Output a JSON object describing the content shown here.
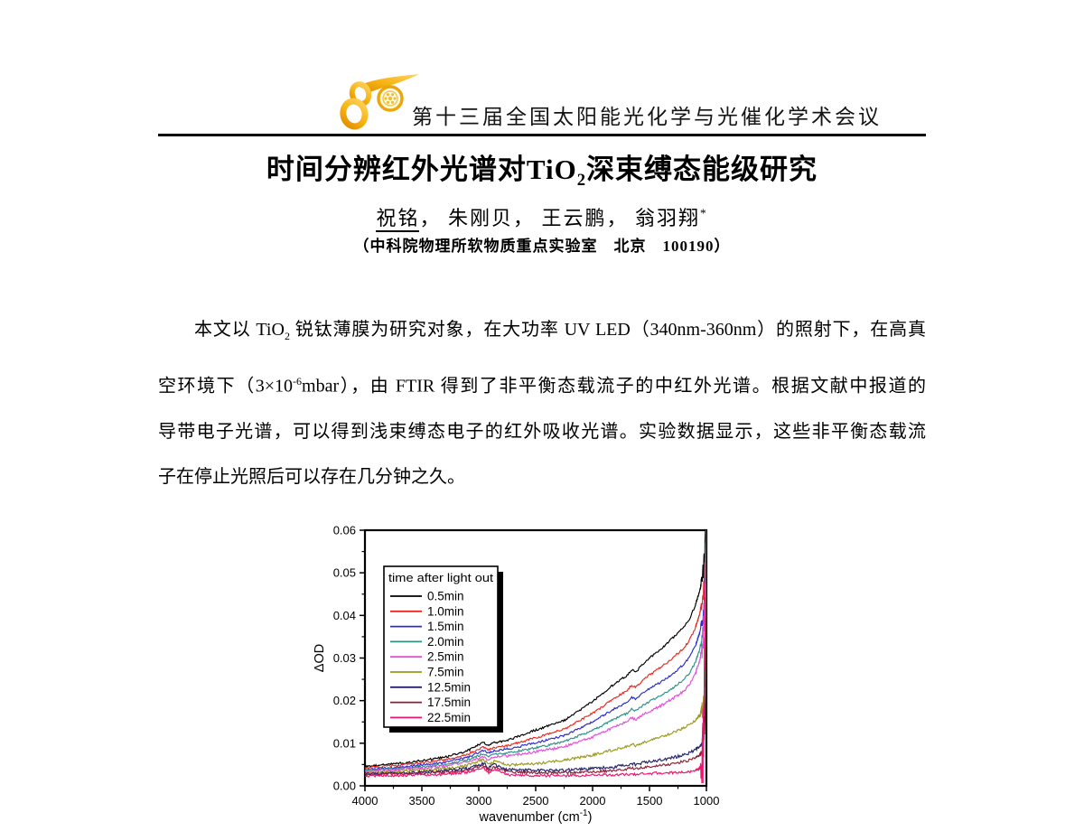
{
  "header": {
    "conference": "第十三届全国太阳能光化学与光催化学术会议"
  },
  "title": {
    "segments": [
      {
        "text": "时间分辨红外光谱对",
        "style": "normal"
      },
      {
        "text": "TiO",
        "style": "normal"
      },
      {
        "text": "2",
        "style": "sub"
      },
      {
        "text": "深束缚态能级研究",
        "style": "normal"
      }
    ]
  },
  "authors": {
    "segments": [
      {
        "text": "祝铭",
        "style": "underline"
      },
      {
        "text": "， 朱刚贝， 王云鹏， 翁羽翔",
        "style": "normal"
      },
      {
        "text": "*",
        "style": "sup"
      }
    ]
  },
  "affiliation": "（中科院物理所软物质重点实验室　北京　100190）",
  "abstract": {
    "lines": [
      [
        {
          "text": "本文以 TiO",
          "style": "normal"
        },
        {
          "text": "2",
          "style": "sub"
        },
        {
          "text": " 锐钛薄膜为研究对象，在大功率 UV LED（340nm-360nm）的照射下，在高真",
          "style": "normal"
        }
      ],
      [
        {
          "text": "空环境下（3×10",
          "style": "normal"
        },
        {
          "text": "-6",
          "style": "sup"
        },
        {
          "text": "mbar），由 FTIR 得到了非平衡态载流子的中红外光谱。根据文献中报道的",
          "style": "normal"
        }
      ],
      [
        {
          "text": "导带电子光谱，可以得到浅束缚态电子的红外吸收光谱。实验数据显示，这些非平衡态载流",
          "style": "normal"
        }
      ],
      [
        {
          "text": "子在停止光照后可以存在几分钟之久。",
          "style": "normal"
        }
      ]
    ]
  },
  "chart_data": {
    "type": "line",
    "title": "",
    "xlabel_main": "wavenumber (cm",
    "xlabel_sup": "-1",
    "xlabel_end": ")",
    "ylabel": "ΔOD",
    "xlim": [
      4000,
      1000
    ],
    "ylim": [
      0,
      0.06
    ],
    "x_ticks": [
      4000,
      3500,
      3000,
      2500,
      2000,
      1500,
      1000
    ],
    "x_minor_ticks": [
      3750,
      3250,
      2750,
      2250,
      1750,
      1250
    ],
    "y_ticks": [
      "0.00",
      "0.01",
      "0.02",
      "0.03",
      "0.04",
      "0.05",
      "0.06"
    ],
    "y_minor_ticks": [
      0.005,
      0.015,
      0.025,
      0.035,
      0.045,
      0.055
    ],
    "grid": false,
    "legend_title": "time after light out",
    "legend_position": "upper-left",
    "series": [
      {
        "name": "0.5min",
        "color": "#000000",
        "noise": 0.00025,
        "edge_noise": 0.003,
        "anchors": [
          [
            4000,
            0.0045
          ],
          [
            3600,
            0.0055
          ],
          [
            3300,
            0.0067
          ],
          [
            3100,
            0.0082
          ],
          [
            2960,
            0.0102
          ],
          [
            2915,
            0.0094
          ],
          [
            2865,
            0.0101
          ],
          [
            2750,
            0.0107
          ],
          [
            2500,
            0.0131
          ],
          [
            2250,
            0.0153
          ],
          [
            2000,
            0.0198
          ],
          [
            1800,
            0.0241
          ],
          [
            1700,
            0.0259
          ],
          [
            1660,
            0.0272
          ],
          [
            1620,
            0.0267
          ],
          [
            1560,
            0.0285
          ],
          [
            1500,
            0.03
          ],
          [
            1400,
            0.0321
          ],
          [
            1300,
            0.0346
          ],
          [
            1200,
            0.0373
          ],
          [
            1150,
            0.0391
          ],
          [
            1100,
            0.0422
          ],
          [
            1060,
            0.0456
          ],
          [
            1030,
            0.0497
          ],
          [
            1012,
            0.056
          ],
          [
            1004,
            0.062
          ]
        ]
      },
      {
        "name": "1.0min",
        "color": "#e8281e",
        "noise": 0.00025,
        "edge_noise": 0.003,
        "anchors": [
          [
            4000,
            0.0042
          ],
          [
            3600,
            0.0051
          ],
          [
            3300,
            0.0061
          ],
          [
            3100,
            0.0074
          ],
          [
            2960,
            0.0091
          ],
          [
            2915,
            0.0084
          ],
          [
            2865,
            0.009
          ],
          [
            2750,
            0.0094
          ],
          [
            2500,
            0.0113
          ],
          [
            2250,
            0.0133
          ],
          [
            2000,
            0.017
          ],
          [
            1800,
            0.0207
          ],
          [
            1700,
            0.0223
          ],
          [
            1660,
            0.0236
          ],
          [
            1620,
            0.0231
          ],
          [
            1560,
            0.0247
          ],
          [
            1500,
            0.026
          ],
          [
            1400,
            0.0278
          ],
          [
            1300,
            0.0299
          ],
          [
            1200,
            0.0323
          ],
          [
            1150,
            0.0341
          ],
          [
            1100,
            0.0369
          ],
          [
            1060,
            0.0403
          ],
          [
            1030,
            0.0441
          ],
          [
            1012,
            0.0505
          ],
          [
            1004,
            0.0575
          ]
        ]
      },
      {
        "name": "1.5min",
        "color": "#2b2bd5",
        "noise": 0.00025,
        "edge_noise": 0.003,
        "anchors": [
          [
            4000,
            0.0038
          ],
          [
            3600,
            0.0046
          ],
          [
            3300,
            0.0055
          ],
          [
            3100,
            0.0067
          ],
          [
            2960,
            0.0083
          ],
          [
            2915,
            0.0076
          ],
          [
            2865,
            0.0082
          ],
          [
            2750,
            0.0086
          ],
          [
            2500,
            0.0101
          ],
          [
            2250,
            0.0118
          ],
          [
            2000,
            0.015
          ],
          [
            1800,
            0.0182
          ],
          [
            1700,
            0.0196
          ],
          [
            1660,
            0.0208
          ],
          [
            1620,
            0.0203
          ],
          [
            1560,
            0.0217
          ],
          [
            1500,
            0.0228
          ],
          [
            1400,
            0.0244
          ],
          [
            1300,
            0.0262
          ],
          [
            1200,
            0.0285
          ],
          [
            1150,
            0.0301
          ],
          [
            1100,
            0.0326
          ],
          [
            1060,
            0.0359
          ],
          [
            1030,
            0.0396
          ],
          [
            1012,
            0.046
          ],
          [
            1004,
            0.053
          ]
        ]
      },
      {
        "name": "2.0min",
        "color": "#2d9186",
        "noise": 0.00025,
        "edge_noise": 0.004,
        "anchors": [
          [
            4000,
            0.0036
          ],
          [
            3600,
            0.0042
          ],
          [
            3300,
            0.005
          ],
          [
            3100,
            0.0061
          ],
          [
            2960,
            0.0075
          ],
          [
            2915,
            0.0069
          ],
          [
            2865,
            0.0074
          ],
          [
            2750,
            0.0077
          ],
          [
            2500,
            0.0089
          ],
          [
            2250,
            0.0104
          ],
          [
            2000,
            0.013
          ],
          [
            1800,
            0.0158
          ],
          [
            1700,
            0.017
          ],
          [
            1660,
            0.0181
          ],
          [
            1620,
            0.0176
          ],
          [
            1560,
            0.0188
          ],
          [
            1500,
            0.0198
          ],
          [
            1400,
            0.0212
          ],
          [
            1300,
            0.0229
          ],
          [
            1200,
            0.0249
          ],
          [
            1150,
            0.0264
          ],
          [
            1100,
            0.0288
          ],
          [
            1060,
            0.0319
          ],
          [
            1030,
            0.0356
          ],
          [
            1012,
            0.044
          ],
          [
            1004,
            0.058
          ]
        ]
      },
      {
        "name": "2.5min",
        "color": "#e24fd4",
        "noise": 0.0003,
        "edge_noise": 0.005,
        "anchors": [
          [
            4000,
            0.0033
          ],
          [
            3600,
            0.0039
          ],
          [
            3300,
            0.0046
          ],
          [
            3100,
            0.0056
          ],
          [
            2960,
            0.0068
          ],
          [
            2915,
            0.0062
          ],
          [
            2865,
            0.0068
          ],
          [
            2750,
            0.007
          ],
          [
            2500,
            0.008
          ],
          [
            2250,
            0.0092
          ],
          [
            2000,
            0.0115
          ],
          [
            1800,
            0.0139
          ],
          [
            1700,
            0.015
          ],
          [
            1660,
            0.016
          ],
          [
            1620,
            0.0155
          ],
          [
            1560,
            0.0166
          ],
          [
            1500,
            0.0175
          ],
          [
            1400,
            0.0188
          ],
          [
            1300,
            0.0204
          ],
          [
            1200,
            0.0222
          ],
          [
            1150,
            0.0236
          ],
          [
            1100,
            0.0261
          ],
          [
            1060,
            0.0293
          ],
          [
            1030,
            0.0331
          ],
          [
            1012,
            0.043
          ],
          [
            1004,
            0.056
          ]
        ]
      },
      {
        "name": "7.5min",
        "color": "#9a9a1f",
        "noise": 0.0003,
        "edge_noise": 0.004,
        "anchors": [
          [
            4000,
            0.003
          ],
          [
            3600,
            0.0035
          ],
          [
            3300,
            0.004
          ],
          [
            3100,
            0.0048
          ],
          [
            2960,
            0.0062
          ],
          [
            2915,
            0.005
          ],
          [
            2865,
            0.0058
          ],
          [
            2750,
            0.0049
          ],
          [
            2500,
            0.0052
          ],
          [
            2250,
            0.006
          ],
          [
            2000,
            0.0072
          ],
          [
            1800,
            0.0086
          ],
          [
            1700,
            0.0092
          ],
          [
            1660,
            0.0098
          ],
          [
            1620,
            0.0094
          ],
          [
            1560,
            0.0101
          ],
          [
            1500,
            0.0106
          ],
          [
            1400,
            0.0115
          ],
          [
            1300,
            0.0124
          ],
          [
            1200,
            0.0136
          ],
          [
            1150,
            0.0143
          ],
          [
            1100,
            0.0152
          ],
          [
            1060,
            0.0166
          ],
          [
            1030,
            0.0182
          ],
          [
            1012,
            0.026
          ],
          [
            1004,
            0.045
          ]
        ]
      },
      {
        "name": "12.5min",
        "color": "#232370",
        "noise": 0.00035,
        "edge_noise": 0.002,
        "anchors": [
          [
            4000,
            0.0028
          ],
          [
            3600,
            0.0031
          ],
          [
            3300,
            0.0035
          ],
          [
            3100,
            0.0041
          ],
          [
            2960,
            0.0053
          ],
          [
            2915,
            0.0042
          ],
          [
            2865,
            0.005
          ],
          [
            2750,
            0.0038
          ],
          [
            2500,
            0.0036
          ],
          [
            2250,
            0.0037
          ],
          [
            2000,
            0.004
          ],
          [
            1800,
            0.0045
          ],
          [
            1700,
            0.0049
          ],
          [
            1660,
            0.0053
          ],
          [
            1620,
            0.005
          ],
          [
            1560,
            0.0054
          ],
          [
            1500,
            0.0057
          ],
          [
            1400,
            0.0061
          ],
          [
            1300,
            0.0066
          ],
          [
            1200,
            0.0073
          ],
          [
            1150,
            0.0077
          ],
          [
            1100,
            0.0085
          ],
          [
            1060,
            0.0093
          ],
          [
            1030,
            0.0104
          ],
          [
            1012,
            0.017
          ],
          [
            1004,
            0.031
          ]
        ]
      },
      {
        "name": "17.5min",
        "color": "#8c1f36",
        "noise": 0.0003,
        "edge_noise": 0.002,
        "anchors": [
          [
            4000,
            0.0026
          ],
          [
            3600,
            0.0029
          ],
          [
            3300,
            0.0032
          ],
          [
            3100,
            0.0037
          ],
          [
            2960,
            0.0047
          ],
          [
            2915,
            0.0037
          ],
          [
            2865,
            0.0044
          ],
          [
            2750,
            0.0033
          ],
          [
            2500,
            0.0031
          ],
          [
            2250,
            0.0031
          ],
          [
            2000,
            0.0033
          ],
          [
            1800,
            0.0036
          ],
          [
            1700,
            0.0039
          ],
          [
            1660,
            0.0042
          ],
          [
            1620,
            0.004
          ],
          [
            1560,
            0.0043
          ],
          [
            1500,
            0.0045
          ],
          [
            1400,
            0.0048
          ],
          [
            1300,
            0.0052
          ],
          [
            1200,
            0.0057
          ],
          [
            1150,
            0.006
          ],
          [
            1100,
            0.0065
          ],
          [
            1060,
            0.0071
          ],
          [
            1030,
            0.008
          ],
          [
            1012,
            0.014
          ],
          [
            1004,
            0.0265
          ]
        ]
      },
      {
        "name": "22.5min",
        "color": "#ee1470",
        "noise": 0.0003,
        "edge_noise": 0.012,
        "anchors": [
          [
            4000,
            0.0023
          ],
          [
            3600,
            0.0025
          ],
          [
            3300,
            0.0027
          ],
          [
            3100,
            0.0032
          ],
          [
            2960,
            0.0043
          ],
          [
            2915,
            0.003
          ],
          [
            2865,
            0.004
          ],
          [
            2750,
            0.0026
          ],
          [
            2500,
            0.0024
          ],
          [
            2250,
            0.0024
          ],
          [
            2000,
            0.0025
          ],
          [
            1800,
            0.0026
          ],
          [
            1700,
            0.0027
          ],
          [
            1660,
            0.0028
          ],
          [
            1620,
            0.0027
          ],
          [
            1560,
            0.0028
          ],
          [
            1500,
            0.0029
          ],
          [
            1400,
            0.003
          ],
          [
            1300,
            0.0031
          ],
          [
            1200,
            0.0032
          ],
          [
            1150,
            0.0033
          ],
          [
            1100,
            0.0036
          ],
          [
            1060,
            0.0042
          ],
          [
            1030,
            0.0065
          ],
          [
            1012,
            0.033
          ],
          [
            1004,
            0.056
          ]
        ]
      }
    ]
  }
}
